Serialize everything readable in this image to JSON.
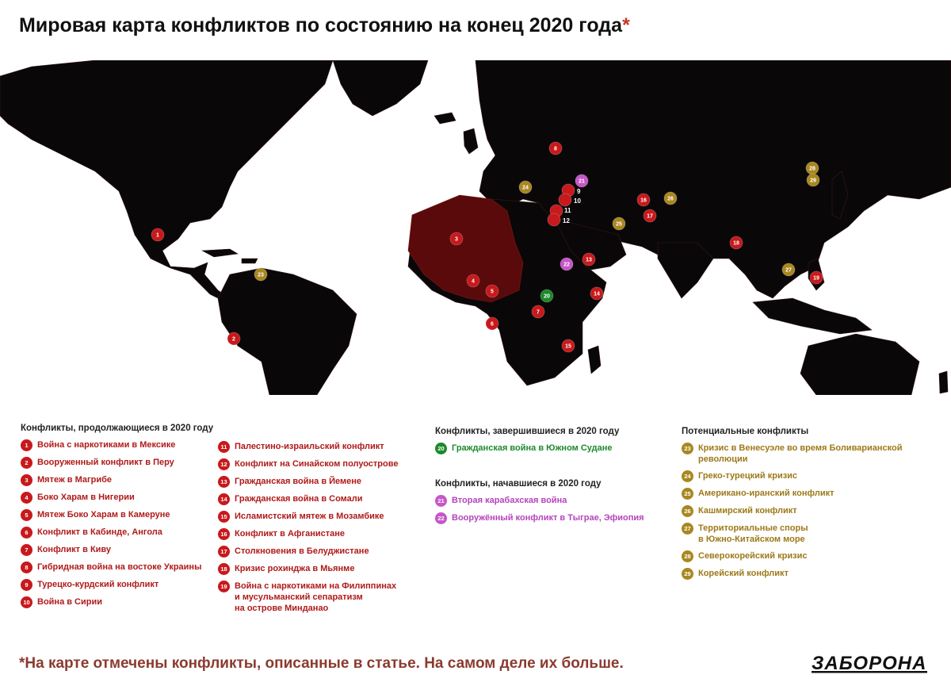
{
  "title": "Мировая карта конфликтов по состоянию на конец 2020 года",
  "title_star": "*",
  "legend": {
    "ongoing_heading": "Конфликты, продолжающиеся в 2020 году",
    "ended_heading": "Конфликты, завершившиеся в 2020 году",
    "started_heading": "Конфликты, начавшиеся в 2020 году",
    "potential_heading": "Потенциальные конфликты"
  },
  "ongoing_col1": [
    {
      "n": "1",
      "label": "Война с наркотиками в Мексике"
    },
    {
      "n": "2",
      "label": "Вооруженный конфликт в Перу"
    },
    {
      "n": "3",
      "label": "Мятеж в Магрибе"
    },
    {
      "n": "4",
      "label": "Боко Харам в Нигерии"
    },
    {
      "n": "5",
      "label": "Мятеж Боко Харам в Камеруне"
    },
    {
      "n": "6",
      "label": "Конфликт в Кабинде, Ангола"
    },
    {
      "n": "7",
      "label": "Конфликт в Киву"
    },
    {
      "n": "8",
      "label": "Гибридная война на востоке Украины"
    },
    {
      "n": "9",
      "label": "Турецко-курдский конфликт"
    },
    {
      "n": "10",
      "label": "Война в Сирии"
    }
  ],
  "ongoing_col2": [
    {
      "n": "11",
      "label": "Палестино-израильский конфликт"
    },
    {
      "n": "12",
      "label": "Конфликт на Синайском полуострове"
    },
    {
      "n": "13",
      "label": "Гражданская война в Йемене"
    },
    {
      "n": "14",
      "label": "Гражданская война в Сомали"
    },
    {
      "n": "15",
      "label": "Исламистский мятеж в Мозамбике"
    },
    {
      "n": "16",
      "label": "Конфликт в Афганистане"
    },
    {
      "n": "17",
      "label": "Столкновения в Белуджистане"
    },
    {
      "n": "18",
      "label": "Кризис рохинджа в Мьянме"
    },
    {
      "n": "19",
      "label": "Война с наркотиками на Филиппинах",
      "line2": "и мусульманский сепаратизм",
      "line3": "на острове Минданао"
    }
  ],
  "ended": [
    {
      "n": "20",
      "label": "Гражданская война в Южном Судане"
    }
  ],
  "started": [
    {
      "n": "21",
      "label": "Вторая карабахская война"
    },
    {
      "n": "22",
      "label": "Вооружённый конфликт в Тыграе, Эфиопия"
    }
  ],
  "potential": [
    {
      "n": "23",
      "label": "Кризис в Венесуэле во время Боливарианской",
      "line2": "революции"
    },
    {
      "n": "24",
      "label": "Греко-турецкий кризис"
    },
    {
      "n": "25",
      "label": "Американо-иранский конфликт"
    },
    {
      "n": "26",
      "label": "Кашмирский конфликт"
    },
    {
      "n": "27",
      "label": "Территориальные споры",
      "line2": "в Южно-Китайском море"
    },
    {
      "n": "28",
      "label": "Северокорейский кризис"
    },
    {
      "n": "29",
      "label": "Корейский конфликт"
    }
  ],
  "footnote": "*На карте отмечены конфликты, описанные в статье. На самом деле их больше.",
  "logo": "ЗАБОРОНА",
  "colors": {
    "ongoing": "#c8191c",
    "ended": "#1c8a2c",
    "started": "#c656c8",
    "potential": "#a98720",
    "maghreb_region": "#5a0a0a",
    "land": "#0a0708"
  },
  "markers": [
    {
      "n": "1",
      "type": "ongoing"
    },
    {
      "n": "2",
      "type": "ongoing"
    },
    {
      "n": "3",
      "type": "ongoing"
    },
    {
      "n": "4",
      "type": "ongoing"
    },
    {
      "n": "5",
      "type": "ongoing"
    },
    {
      "n": "6",
      "type": "ongoing"
    },
    {
      "n": "7",
      "type": "ongoing"
    },
    {
      "n": "8",
      "type": "ongoing"
    },
    {
      "n": "9",
      "type": "ongoing"
    },
    {
      "n": "10",
      "type": "ongoing"
    },
    {
      "n": "11",
      "type": "ongoing"
    },
    {
      "n": "12",
      "type": "ongoing"
    },
    {
      "n": "13",
      "type": "ongoing"
    },
    {
      "n": "14",
      "type": "ongoing"
    },
    {
      "n": "15",
      "type": "ongoing"
    },
    {
      "n": "16",
      "type": "ongoing"
    },
    {
      "n": "17",
      "type": "ongoing"
    },
    {
      "n": "18",
      "type": "ongoing"
    },
    {
      "n": "19",
      "type": "ongoing"
    },
    {
      "n": "20",
      "type": "ended"
    },
    {
      "n": "21",
      "type": "started"
    },
    {
      "n": "22",
      "type": "started"
    },
    {
      "n": "23",
      "type": "potential"
    },
    {
      "n": "24",
      "type": "potential"
    },
    {
      "n": "25",
      "type": "potential"
    },
    {
      "n": "26",
      "type": "potential"
    },
    {
      "n": "27",
      "type": "potential"
    },
    {
      "n": "28",
      "type": "potential"
    },
    {
      "n": "29",
      "type": "potential"
    }
  ]
}
